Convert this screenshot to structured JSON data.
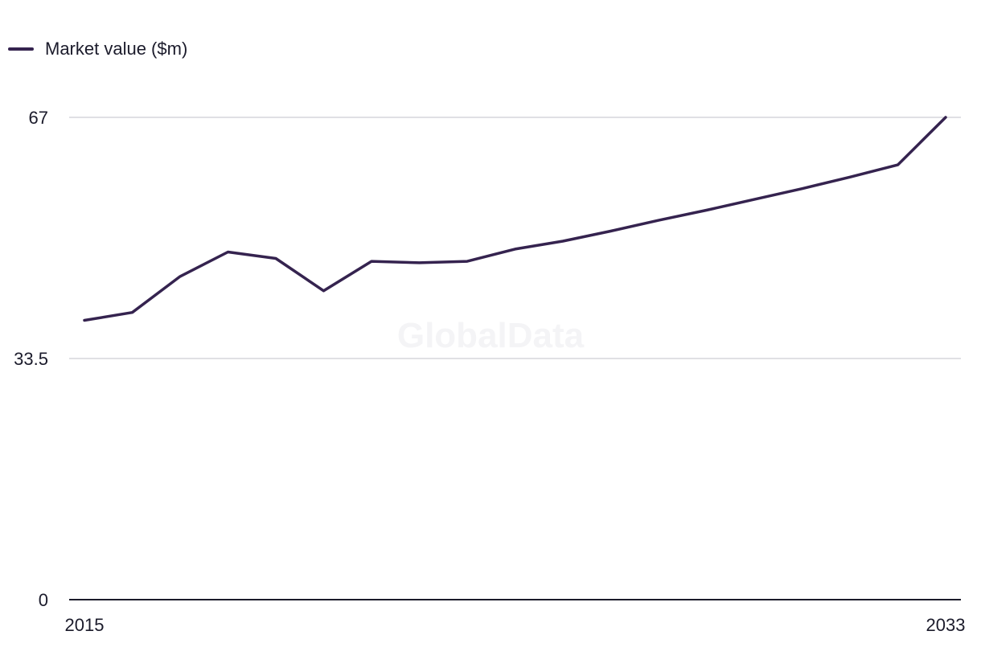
{
  "legend": {
    "label": "Market value ($m)"
  },
  "watermark": "GlobalData",
  "colors": {
    "series": "#35234f",
    "grid": "#d6d6dc",
    "axis": "#1b1b2b"
  },
  "chart_data": {
    "type": "line",
    "x": [
      2015,
      2016,
      2017,
      2018,
      2019,
      2020,
      2021,
      2022,
      2023,
      2024,
      2025,
      2026,
      2027,
      2028,
      2029,
      2030,
      2031,
      2032,
      2033
    ],
    "series": [
      {
        "name": "Market value ($m)",
        "values": [
          38.8,
          39.9,
          44.9,
          48.3,
          47.4,
          42.9,
          47.0,
          46.8,
          47.0,
          48.7,
          49.8,
          51.2,
          52.7,
          54.1,
          55.6,
          57.1,
          58.7,
          60.4,
          67.0
        ]
      }
    ],
    "yticks": [
      0,
      33.5,
      67
    ],
    "ytick_labels": [
      "0",
      "33.5",
      "67"
    ],
    "xtick_labels": [
      "2015",
      "2033"
    ],
    "ylim": [
      0,
      67
    ],
    "xlim": [
      2015,
      2033
    ],
    "grid": true,
    "legend_position": "top-left"
  }
}
